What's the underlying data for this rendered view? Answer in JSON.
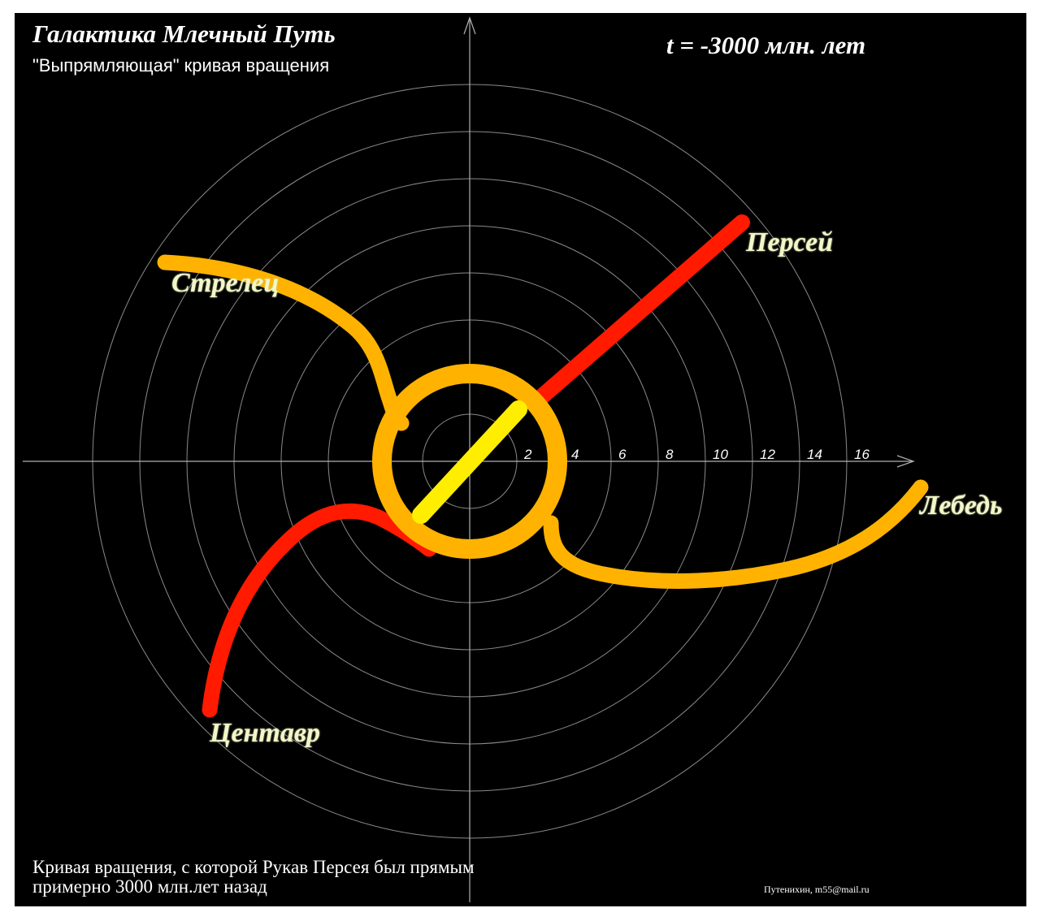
{
  "header": {
    "title": "Галактика Млечный Путь",
    "subtitle": "\"Выпрямляющая\" кривая вращения",
    "time_label": "t = -3000 млн. лет"
  },
  "axis": {
    "tick_labels": [
      "2",
      "4",
      "6",
      "8",
      "10",
      "12",
      "14",
      "16"
    ]
  },
  "arms": {
    "perseus": "Персей",
    "sagittarius": "Стрелец",
    "cygnus": "Лебедь",
    "centaurus": "Центавр"
  },
  "colors": {
    "background": "#000000",
    "grid": "#8a8a8a",
    "orange_arm": "#ffb300",
    "red_arm": "#ff1a00",
    "bar": "#ffee00",
    "label": "#f2f6c9"
  },
  "footer": {
    "caption_line1": "Кривая вращения, с которой Рукав Персея был прямым",
    "caption_line2": "примерно 3000 млн.лет назад",
    "author": "Путенихин, m55@mail.ru"
  }
}
